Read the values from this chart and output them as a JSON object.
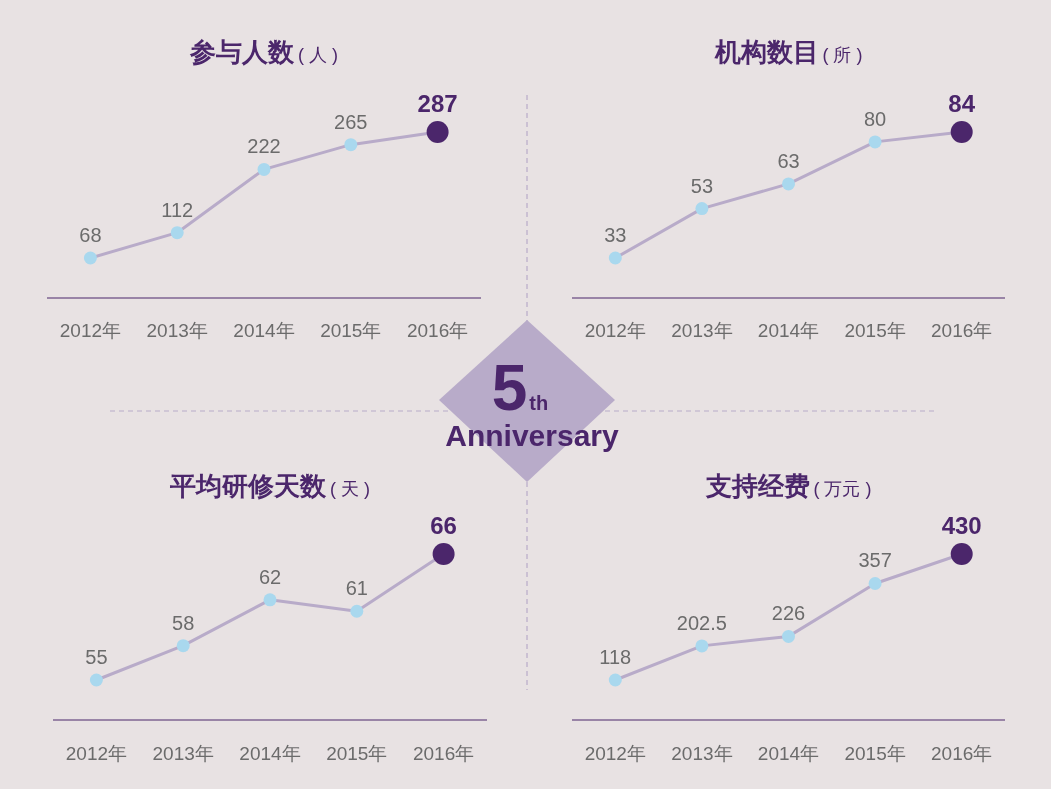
{
  "chart_data": [
    {
      "type": "line",
      "title": "参与人数",
      "subtitle": "( 人 )",
      "categories": [
        "2012年",
        "2013年",
        "2014年",
        "2015年",
        "2016年"
      ],
      "data_labels": true,
      "marker": "circle",
      "series": [
        {
          "color": "#b8abc9",
          "colors": [
            "#a9d8ee",
            "#a9d8ee",
            "#a9d8ee",
            "#a9d8ee",
            "#4b266b"
          ],
          "values": [
            68,
            112,
            222,
            265,
            287
          ]
        }
      ]
    },
    {
      "type": "line",
      "title": "机构数目",
      "subtitle": "( 所 )",
      "categories": [
        "2012年",
        "2013年",
        "2014年",
        "2015年",
        "2016年"
      ],
      "data_labels": true,
      "marker": "circle",
      "series": [
        {
          "color": "#b8abc9",
          "colors": [
            "#a9d8ee",
            "#a9d8ee",
            "#a9d8ee",
            "#a9d8ee",
            "#4b266b"
          ],
          "values": [
            33,
            53,
            63,
            80,
            84
          ]
        }
      ]
    },
    {
      "type": "line",
      "title": "平均研修天数",
      "subtitle": "( 天 )",
      "categories": [
        "2012年",
        "2013年",
        "2014年",
        "2015年",
        "2016年"
      ],
      "data_labels": true,
      "marker": "circle",
      "series": [
        {
          "color": "#b8abc9",
          "colors": [
            "#a9d8ee",
            "#a9d8ee",
            "#a9d8ee",
            "#a9d8ee",
            "#4b266b"
          ],
          "values": [
            55,
            58,
            62,
            61,
            66
          ]
        }
      ]
    },
    {
      "type": "line",
      "title": "支持经费",
      "subtitle": "( 万元 )",
      "categories": [
        "2012年",
        "2013年",
        "2014年",
        "2015年",
        "2016年"
      ],
      "data_labels": true,
      "marker": "circle",
      "series": [
        {
          "color": "#b8abc9",
          "colors": [
            "#a9d8ee",
            "#a9d8ee",
            "#a9d8ee",
            "#a9d8ee",
            "#4b266b"
          ],
          "values": [
            118,
            202.5,
            226,
            357,
            430
          ]
        }
      ]
    },
    {
      "type": "other",
      "annotations": [
        "5$^{th}$",
        "Anniversary"
      ]
    }
  ]
}
